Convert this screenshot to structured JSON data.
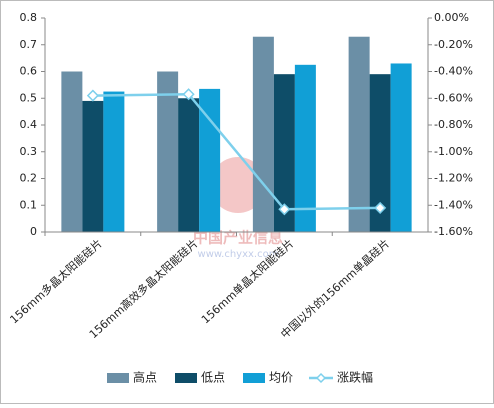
{
  "chart_data": {
    "type": "bar",
    "categories": [
      "156mm多晶太阳能硅片",
      "156mm高效多晶太阳能硅片",
      "156mm单晶太阳能硅片",
      "中国以外的156mm单晶硅片"
    ],
    "series": [
      {
        "name": "高点",
        "color": "#6b8fa6",
        "values": [
          0.6,
          0.6,
          0.73,
          0.73
        ]
      },
      {
        "name": "低点",
        "color": "#0e4d68",
        "values": [
          0.49,
          0.5,
          0.59,
          0.59
        ]
      },
      {
        "name": "均价",
        "color": "#119fd6",
        "values": [
          0.525,
          0.535,
          0.625,
          0.63
        ]
      },
      {
        "name": "涨跌幅",
        "color": "#7ed0ec",
        "type": "line",
        "axis": "y2",
        "values": [
          -0.58,
          -0.57,
          -1.43,
          -1.42
        ]
      }
    ],
    "ylim": [
      0,
      0.8
    ],
    "yticks": [
      0,
      0.1,
      0.2,
      0.3,
      0.4,
      0.5,
      0.6,
      0.7,
      0.8
    ],
    "y2lim": [
      -1.6,
      0
    ],
    "y2ticks": [
      {
        "value": 0,
        "label": "0.00%"
      },
      {
        "value": -0.2,
        "label": "-0.20%"
      },
      {
        "value": -0.4,
        "label": "-0.40%"
      },
      {
        "value": -0.6,
        "label": "-0.60%"
      },
      {
        "value": -0.8,
        "label": "-0.80%"
      },
      {
        "value": -1.0,
        "label": "-1.00%"
      },
      {
        "value": -1.2,
        "label": "-1.20%"
      },
      {
        "value": -1.4,
        "label": "-1.40%"
      },
      {
        "value": -1.6,
        "label": "-1.60%"
      }
    ],
    "grid": false,
    "legend": "bottom",
    "watermark": [
      "中国产业信息",
      "www.chyxx.com"
    ]
  }
}
